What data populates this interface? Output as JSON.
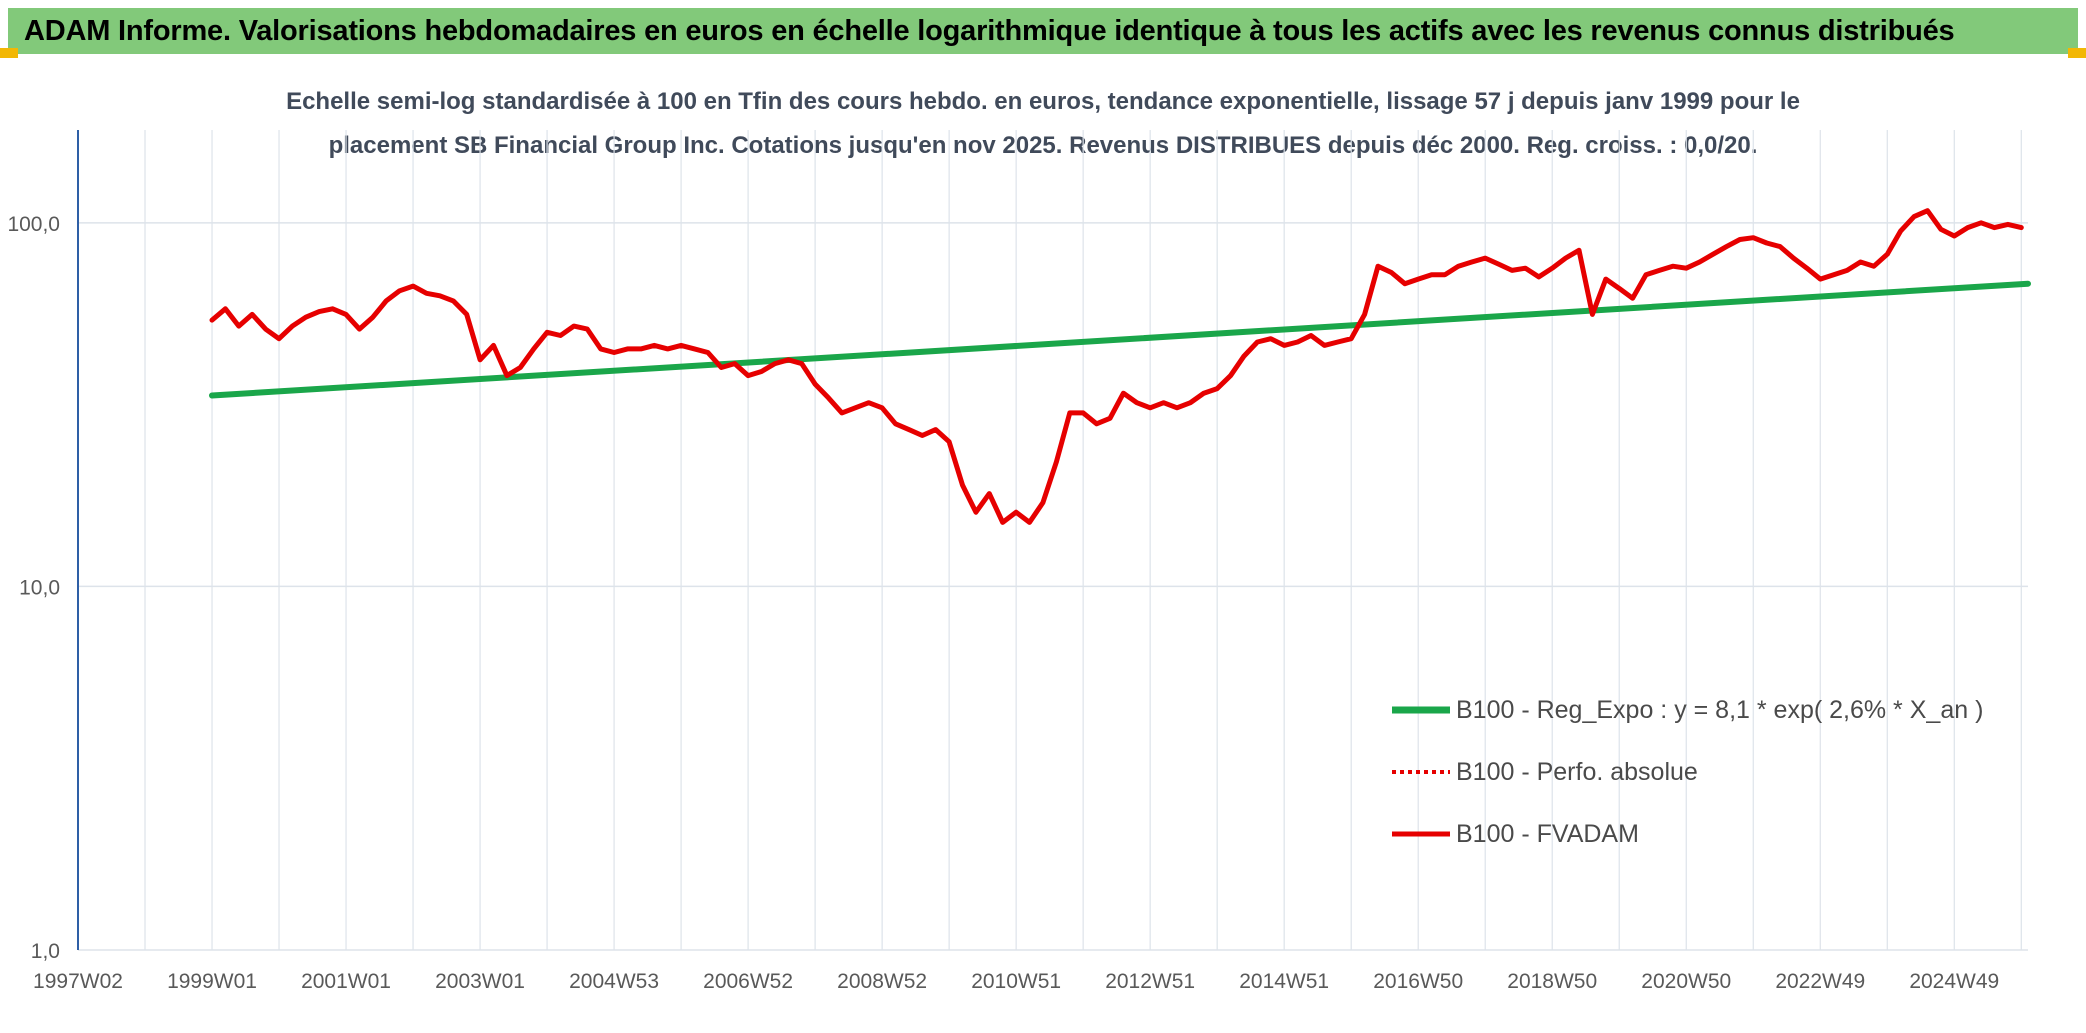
{
  "banner": {
    "title": "ADAM Informe. Valorisations hebdomadaires en euros en échelle logarithmique identique à tous les actifs avec les revenus connus distribués"
  },
  "colors": {
    "banner_bg": "#82c97a",
    "corner_accent": "#f2b705",
    "fvadam": "#e60000",
    "regression": "#1aa64a",
    "perfo": "#e60000",
    "axis_line": "#2e5fa6",
    "grid": "#dde3ea"
  },
  "chart_data": {
    "type": "line",
    "scale": "log",
    "subtitle_line1": "Echelle semi-log standardisée à 100 en Tfin des cours hebdo. en euros, tendance exponentielle, lissage 57 j depuis janv 1999 pour le",
    "subtitle_line2": "placement SB Financial Group Inc. Cotations jusqu'en nov 2025. Revenus DISTRIBUES depuis déc 2000. Reg. croiss. : 0,0/20.",
    "xlim": [
      1997.0,
      2026.1
    ],
    "ylim": [
      1,
      180
    ],
    "y_ticks": [
      {
        "value": 1,
        "label": "1,0"
      },
      {
        "value": 10,
        "label": "10,0"
      },
      {
        "value": 100,
        "label": "100,0"
      }
    ],
    "x_ticks": [
      {
        "value": 1997.0,
        "label": "1997W02"
      },
      {
        "value": 1999.0,
        "label": "1999W01"
      },
      {
        "value": 2001.0,
        "label": "2001W01"
      },
      {
        "value": 2003.0,
        "label": "2003W01"
      },
      {
        "value": 2005.0,
        "label": "2004W53"
      },
      {
        "value": 2007.0,
        "label": "2006W52"
      },
      {
        "value": 2009.0,
        "label": "2008W52"
      },
      {
        "value": 2011.0,
        "label": "2010W51"
      },
      {
        "value": 2013.0,
        "label": "2012W51"
      },
      {
        "value": 2015.0,
        "label": "2014W51"
      },
      {
        "value": 2017.0,
        "label": "2016W50"
      },
      {
        "value": 2019.0,
        "label": "2018W50"
      },
      {
        "value": 2021.0,
        "label": "2020W50"
      },
      {
        "value": 2023.0,
        "label": "2022W49"
      },
      {
        "value": 2025.0,
        "label": "2024W49"
      }
    ],
    "series": [
      {
        "name": "B100 - Reg_Expo : y = 8,1 * exp( 2,6% *  X_an )",
        "style": "solid-thick",
        "color": "#1aa64a",
        "x": [
          1999.0,
          2026.1
        ],
        "y": [
          33.5,
          68.0
        ]
      },
      {
        "name": "B100 - Perfo. absolue",
        "style": "dotted",
        "color": "#e60000",
        "x": [],
        "y": []
      },
      {
        "name": "B100 - FVADAM",
        "style": "solid",
        "color": "#e60000",
        "x": [
          1999.0,
          1999.2,
          1999.4,
          1999.6,
          1999.8,
          2000.0,
          2000.2,
          2000.4,
          2000.6,
          2000.8,
          2001.0,
          2001.2,
          2001.4,
          2001.6,
          2001.8,
          2002.0,
          2002.2,
          2002.4,
          2002.6,
          2002.8,
          2003.0,
          2003.2,
          2003.4,
          2003.6,
          2003.8,
          2004.0,
          2004.2,
          2004.4,
          2004.6,
          2004.8,
          2005.0,
          2005.2,
          2005.4,
          2005.6,
          2005.8,
          2006.0,
          2006.2,
          2006.4,
          2006.6,
          2006.8,
          2007.0,
          2007.2,
          2007.4,
          2007.6,
          2007.8,
          2008.0,
          2008.2,
          2008.4,
          2008.6,
          2008.8,
          2009.0,
          2009.2,
          2009.4,
          2009.6,
          2009.8,
          2010.0,
          2010.2,
          2010.4,
          2010.6,
          2010.8,
          2011.0,
          2011.2,
          2011.4,
          2011.6,
          2011.8,
          2012.0,
          2012.2,
          2012.4,
          2012.6,
          2012.8,
          2013.0,
          2013.2,
          2013.4,
          2013.6,
          2013.8,
          2014.0,
          2014.2,
          2014.4,
          2014.6,
          2014.8,
          2015.0,
          2015.2,
          2015.4,
          2015.6,
          2015.8,
          2016.0,
          2016.2,
          2016.4,
          2016.6,
          2016.8,
          2017.0,
          2017.2,
          2017.4,
          2017.6,
          2017.8,
          2018.0,
          2018.2,
          2018.4,
          2018.6,
          2018.8,
          2019.0,
          2019.2,
          2019.4,
          2019.6,
          2019.8,
          2020.0,
          2020.2,
          2020.4,
          2020.6,
          2020.8,
          2021.0,
          2021.2,
          2021.4,
          2021.6,
          2021.8,
          2022.0,
          2022.2,
          2022.4,
          2022.6,
          2022.8,
          2023.0,
          2023.2,
          2023.4,
          2023.6,
          2023.8,
          2024.0,
          2024.2,
          2024.4,
          2024.6,
          2024.8,
          2025.0,
          2025.2,
          2025.4,
          2025.6,
          2025.8,
          2026.0
        ],
        "y": [
          54,
          58,
          52,
          56,
          51,
          48,
          52,
          55,
          57,
          58,
          56,
          51,
          55,
          61,
          65,
          67,
          64,
          63,
          61,
          56,
          42,
          46,
          38,
          40,
          45,
          50,
          49,
          52,
          51,
          45,
          44,
          45,
          45,
          46,
          45,
          46,
          45,
          44,
          40,
          41,
          38,
          39,
          41,
          42,
          41,
          36,
          33,
          30,
          31,
          32,
          31,
          28,
          27,
          26,
          27,
          25,
          19,
          16,
          18,
          15,
          16,
          15,
          17,
          22,
          30,
          30,
          28,
          29,
          34,
          32,
          31,
          32,
          31,
          32,
          34,
          35,
          38,
          43,
          47,
          48,
          46,
          47,
          49,
          46,
          47,
          48,
          56,
          76,
          73,
          68,
          70,
          72,
          72,
          76,
          78,
          80,
          77,
          74,
          75,
          71,
          75,
          80,
          84,
          56,
          70,
          66,
          62,
          72,
          74,
          76,
          75,
          78,
          82,
          86,
          90,
          91,
          88,
          86,
          80,
          75,
          70,
          72,
          74,
          78,
          76,
          82,
          95,
          104,
          108,
          96,
          92,
          97,
          100,
          97,
          99,
          97
        ]
      }
    ],
    "legend": {
      "position": "bottom-right",
      "items": [
        {
          "label": "B100 - Reg_Expo : y = 8,1 * exp( 2,6% *  X_an )",
          "style": "solid-thick",
          "color": "#1aa64a"
        },
        {
          "label": "B100 - Perfo. absolue",
          "style": "dotted",
          "color": "#e60000"
        },
        {
          "label": "B100 - FVADAM",
          "style": "solid",
          "color": "#e60000"
        }
      ]
    }
  }
}
